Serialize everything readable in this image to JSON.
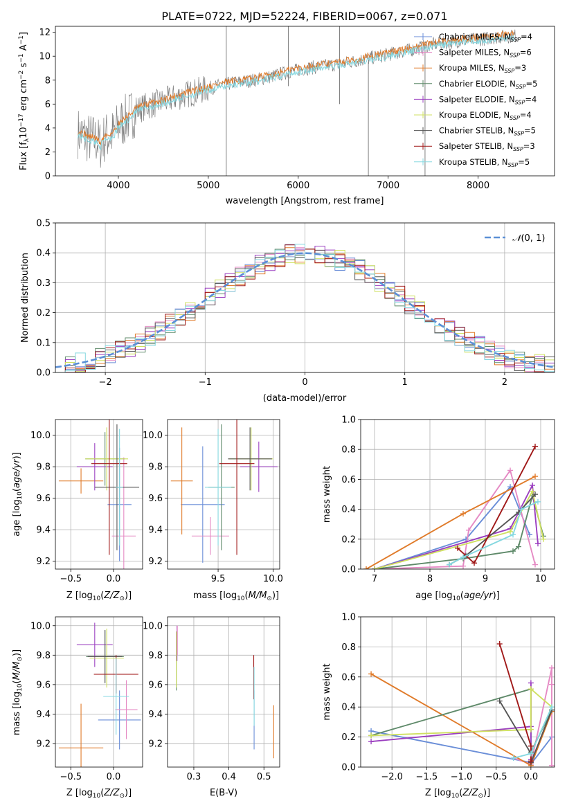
{
  "figure": {
    "title": "PLATE=0722, MJD=52224, FIBERID=0067, z=0.071"
  },
  "colors": {
    "Chabrier MILES": "#6a8ed8",
    "Salpeter MILES": "#e58ac4",
    "Kroupa MILES": "#e07b2a",
    "Chabrier ELODIE": "#5f8a6a",
    "Salpeter ELODIE": "#9b3fc0",
    "Kroupa ELODIE": "#cfe060",
    "Chabrier STELIB": "#555555",
    "Salpeter STELIB": "#a01818",
    "Kroupa STELIB": "#85d8e0",
    "data": "#808080",
    "normal": "#5b8fd6"
  },
  "chart_data": [
    {
      "id": "spectrum",
      "type": "line",
      "xlabel": "wavelength [Angstrom, rest frame]",
      "ylabel": "Flux [f_λ10^-17 erg cm^-2 s^-1 A^-1]",
      "xlim": [
        3300,
        8850
      ],
      "ylim": [
        0,
        12.5
      ],
      "xticks": [
        4000,
        5000,
        6000,
        7000,
        8000
      ],
      "yticks": [
        0,
        2,
        4,
        6,
        8,
        10,
        12
      ],
      "grid": false,
      "legend": "top-right",
      "legend_entries": [
        {
          "name": "Chabrier MILES",
          "nssp": "4"
        },
        {
          "name": "Salpeter MILES",
          "nssp": "6"
        },
        {
          "name": "Kroupa MILES",
          "nssp": "3"
        },
        {
          "name": "Chabrier ELODIE",
          "nssp": "5"
        },
        {
          "name": "Salpeter ELODIE",
          "nssp": "4"
        },
        {
          "name": "Kroupa ELODIE",
          "nssp": "4"
        },
        {
          "name": "Chabrier STELIB",
          "nssp": "5"
        },
        {
          "name": "Salpeter STELIB",
          "nssp": "3"
        },
        {
          "name": "Kroupa STELIB",
          "nssp": "5"
        }
      ],
      "continuum": {
        "x": [
          3550,
          3650,
          3750,
          3800,
          3850,
          3950,
          4000,
          4100,
          4200,
          4300,
          4500,
          4700,
          4900,
          5100,
          5300,
          5500,
          5700,
          5900,
          6100,
          6300,
          6500,
          6700,
          6900,
          7100,
          7300,
          7450,
          7600,
          7800,
          8000,
          8200,
          8400
        ],
        "y": [
          3.6,
          3.2,
          3.0,
          2.6,
          3.2,
          3.5,
          4.2,
          4.8,
          5.5,
          5.8,
          6.2,
          6.7,
          7.1,
          7.5,
          7.8,
          8.0,
          8.3,
          8.7,
          9.0,
          9.2,
          9.4,
          9.7,
          10.0,
          10.3,
          10.6,
          10.9,
          11.1,
          11.3,
          11.4,
          11.6,
          11.7
        ]
      },
      "data_spikes": [
        {
          "x": 5200,
          "y_low": 0,
          "y_high": 12.5
        },
        {
          "x": 5890,
          "y_low": 7.5,
          "y_high": 12.5
        },
        {
          "x": 6460,
          "y_low": 6.0,
          "y_high": 12.5
        },
        {
          "x": 6780,
          "y_low": 0,
          "y_high": 9.5
        },
        {
          "x": 7410,
          "y_low": 0,
          "y_high": 11.0
        }
      ]
    },
    {
      "id": "residuals",
      "type": "histogram",
      "xlabel": "(data-model)/error",
      "ylabel": "Normed distribution",
      "xlim": [
        -2.5,
        2.5
      ],
      "ylim": [
        0,
        0.5
      ],
      "xticks": [
        -2,
        -1,
        0,
        1,
        2
      ],
      "yticks": [
        0.0,
        0.1,
        0.2,
        0.3,
        0.4,
        0.5
      ],
      "grid": true,
      "legend": "top-right",
      "normal_label": "N(0,1)",
      "bin_width": 0.1,
      "bin_start": -2.5
    },
    {
      "id": "age-vs-Z",
      "type": "scatter",
      "xlabel": "Z [log10(Z/Z⊙)]",
      "ylabel": "age  [log10(age/yr)]",
      "xlim": [
        -0.68,
        0.34
      ],
      "ylim": [
        9.15,
        10.1
      ],
      "xticks": [
        -0.5,
        0.0
      ],
      "yticks": [
        9.2,
        9.4,
        9.6,
        9.8,
        10.0
      ],
      "grid": true,
      "points": [
        {
          "model": "Chabrier MILES",
          "x": 0.07,
          "xerr": 0.14,
          "y": 9.56,
          "yerr": 0.36
        },
        {
          "model": "Salpeter MILES",
          "x": 0.12,
          "xerr": 0.14,
          "y": 9.36,
          "yerr": 0.5
        },
        {
          "model": "Kroupa MILES",
          "x": -0.38,
          "xerr": 0.26,
          "y": 9.71,
          "yerr": 0.08
        },
        {
          "model": "Chabrier ELODIE",
          "x": -0.1,
          "xerr": 0.23,
          "y": 9.85,
          "yerr": 0.17
        },
        {
          "model": "Salpeter ELODIE",
          "x": -0.22,
          "xerr": 0.21,
          "y": 9.8,
          "yerr": 0.15
        },
        {
          "model": "Kroupa ELODIE",
          "x": -0.08,
          "xerr": 0.25,
          "y": 9.85,
          "yerr": 0.2
        },
        {
          "model": "Chabrier STELIB",
          "x": 0.04,
          "xerr": 0.26,
          "y": 9.67,
          "yerr": 0.4
        },
        {
          "model": "Salpeter STELIB",
          "x": -0.05,
          "xerr": 0.21,
          "y": 9.82,
          "yerr": 0.58
        },
        {
          "model": "Kroupa STELIB",
          "x": 0.07,
          "xerr": 0.04,
          "y": 9.67,
          "yerr": 0.37
        }
      ]
    },
    {
      "id": "age-vs-mass",
      "type": "scatter",
      "xlabel": "mass [log10(M/M⊙)]",
      "ylabel": "",
      "xlim": [
        9.04,
        10.06
      ],
      "ylim": [
        9.15,
        10.1
      ],
      "xticks": [
        9.5,
        10.0
      ],
      "yticks": [
        9.2,
        9.4,
        9.6,
        9.8,
        10.0
      ],
      "xticklabels": [
        "9.5",
        "10.0"
      ],
      "grid": true,
      "points": [
        {
          "model": "Chabrier MILES",
          "x": 9.36,
          "xerr": 0.2,
          "y": 9.56,
          "yerr": 0.37
        },
        {
          "model": "Salpeter MILES",
          "x": 9.43,
          "xerr": 0.17,
          "y": 9.36,
          "yerr": 0.12
        },
        {
          "model": "Kroupa MILES",
          "x": 9.17,
          "xerr": 0.1,
          "y": 9.71,
          "yerr": 0.34
        },
        {
          "model": "Chabrier ELODIE",
          "x": 9.53,
          "xerr": 0.12,
          "y": 9.67,
          "yerr": 0.4
        },
        {
          "model": "Salpeter ELODIE",
          "x": 9.87,
          "xerr": 0.17,
          "y": 9.8,
          "yerr": 0.16
        },
        {
          "model": "Kroupa ELODIE",
          "x": 9.8,
          "xerr": 0.2,
          "y": 9.85,
          "yerr": 0.2
        },
        {
          "model": "Chabrier STELIB",
          "x": 9.79,
          "xerr": 0.2,
          "y": 9.85,
          "yerr": 0.2
        },
        {
          "model": "Salpeter STELIB",
          "x": 9.67,
          "xerr": 0.16,
          "y": 9.82,
          "yerr": 0.58
        },
        {
          "model": "Kroupa STELIB",
          "x": 9.5,
          "xerr": 0.12,
          "y": 9.67,
          "yerr": 0.37
        }
      ]
    },
    {
      "id": "mass-weight-vs-age",
      "type": "line",
      "xlabel": "age  [log10(age/yr)]",
      "ylabel": "mass weight",
      "xlim": [
        6.75,
        10.25
      ],
      "ylim": [
        0,
        1
      ],
      "xticks": [
        7,
        8,
        9,
        10
      ],
      "yticks": [
        0.0,
        0.2,
        0.4,
        0.6,
        0.8,
        1.0
      ],
      "grid": true,
      "series": [
        {
          "model": "Chabrier MILES",
          "x": [
            7.0,
            8.65,
            9.45,
            9.8
          ],
          "y": [
            0.0,
            0.2,
            0.55,
            0.23
          ]
        },
        {
          "model": "Salpeter MILES",
          "x": [
            7.0,
            8.6,
            8.7,
            9.45,
            9.9
          ],
          "y": [
            0.0,
            0.02,
            0.26,
            0.66,
            0.03
          ]
        },
        {
          "model": "Kroupa MILES",
          "x": [
            6.85,
            8.6,
            9.9
          ],
          "y": [
            0.0,
            0.37,
            0.62
          ]
        },
        {
          "model": "Chabrier ELODIE",
          "x": [
            7.0,
            8.6,
            9.5,
            9.6,
            9.85,
            10.05
          ],
          "y": [
            0.0,
            0.07,
            0.12,
            0.15,
            0.49,
            0.22
          ]
        },
        {
          "model": "Salpeter ELODIE",
          "x": [
            7.0,
            9.45,
            9.85,
            9.95
          ],
          "y": [
            0.0,
            0.27,
            0.56,
            0.17
          ]
        },
        {
          "model": "Kroupa ELODIE",
          "x": [
            7.0,
            9.45,
            9.85,
            10.05
          ],
          "y": [
            0.0,
            0.25,
            0.52,
            0.2
          ]
        },
        {
          "model": "Chabrier STELIB",
          "x": [
            8.35,
            8.65,
            9.6,
            9.9
          ],
          "y": [
            0.03,
            0.09,
            0.38,
            0.5
          ]
        },
        {
          "model": "Salpeter STELIB",
          "x": [
            8.5,
            8.8,
            9.9
          ],
          "y": [
            0.14,
            0.04,
            0.82
          ]
        },
        {
          "model": "Kroupa STELIB",
          "x": [
            8.35,
            8.6,
            9.5,
            9.65,
            9.95
          ],
          "y": [
            0.03,
            0.08,
            0.23,
            0.4,
            0.45
          ]
        }
      ]
    },
    {
      "id": "mass-vs-Z",
      "type": "scatter",
      "xlabel": "Z [log10(Z/Z⊙)]",
      "ylabel": "mass [log10(M/M⊙)]",
      "xlim": [
        -0.68,
        0.34
      ],
      "ylim": [
        9.04,
        10.06
      ],
      "xticks": [
        -0.5,
        0.0
      ],
      "yticks": [
        9.2,
        9.4,
        9.6,
        9.8,
        10.0
      ],
      "grid": true,
      "points": [
        {
          "model": "Chabrier MILES",
          "x": 0.07,
          "xerr": 0.25,
          "y": 9.36,
          "yerr": 0.2
        },
        {
          "model": "Salpeter MILES",
          "x": 0.15,
          "xerr": 0.13,
          "y": 9.43,
          "yerr": 0.2
        },
        {
          "model": "Kroupa MILES",
          "x": -0.38,
          "xerr": 0.26,
          "y": 9.17,
          "yerr": 0.3
        },
        {
          "model": "Chabrier ELODIE",
          "x": -0.1,
          "xerr": 0.22,
          "y": 9.79,
          "yerr": 0.18
        },
        {
          "model": "Salpeter ELODIE",
          "x": -0.22,
          "xerr": 0.21,
          "y": 9.87,
          "yerr": 0.15
        },
        {
          "model": "Kroupa ELODIE",
          "x": -0.08,
          "xerr": 0.2,
          "y": 9.78,
          "yerr": 0.2
        },
        {
          "model": "Chabrier STELIB",
          "x": -0.1,
          "xerr": 0.2,
          "y": 9.79,
          "yerr": 0.18
        },
        {
          "model": "Salpeter STELIB",
          "x": 0.03,
          "xerr": 0.26,
          "y": 9.67,
          "yerr": 0.13
        },
        {
          "model": "Kroupa STELIB",
          "x": 0.03,
          "xerr": 0.15,
          "y": 9.52,
          "yerr": 0.26
        }
      ]
    },
    {
      "id": "ebv",
      "type": "scatter",
      "xlabel": "E(B-V)",
      "ylabel": "",
      "xlim": [
        0.225,
        0.545
      ],
      "ylim": [
        9.04,
        10.06
      ],
      "xticks": [
        0.3,
        0.4,
        0.5
      ],
      "yticks": [
        9.2,
        9.4,
        9.6,
        9.8,
        10.0
      ],
      "grid": true,
      "points": [
        {
          "model": "Chabrier ELODIE",
          "x": 0.25,
          "y": 9.76,
          "yerr": 0.2
        },
        {
          "model": "Salpeter ELODIE",
          "x": 0.252,
          "y": 9.88,
          "yerr": 0.12
        },
        {
          "model": "Kroupa ELODIE",
          "x": 0.25,
          "y": 9.77,
          "yerr": 0.19
        },
        {
          "model": "Salpeter MILES",
          "x": 0.253,
          "y": 9.9,
          "yerr": 0.1
        },
        {
          "model": "Salpeter STELIB",
          "x": 0.471,
          "y": 9.65,
          "yerr": 0.15
        },
        {
          "model": "Chabrier MILES",
          "x": 0.472,
          "y": 9.36,
          "yerr": 0.2
        },
        {
          "model": "Kroupa STELIB",
          "x": 0.472,
          "y": 9.52,
          "yerr": 0.2
        },
        {
          "model": "Kroupa MILES",
          "x": 0.528,
          "y": 9.28,
          "yerr": 0.18
        }
      ]
    },
    {
      "id": "mass-weight-vs-Z",
      "type": "line",
      "xlabel": "Z [log10(Z/Z⊙)]",
      "ylabel": "mass weight",
      "xlim": [
        -2.45,
        0.34
      ],
      "ylim": [
        0,
        1
      ],
      "xticks": [
        -2.0,
        -1.5,
        -1.0,
        -0.5,
        0.0
      ],
      "yticks": [
        0.0,
        0.2,
        0.4,
        0.6,
        0.8,
        1.0
      ],
      "grid": true,
      "series": [
        {
          "model": "Chabrier MILES",
          "x": [
            -2.3,
            0.0,
            0.0,
            0.3
          ],
          "y": [
            0.24,
            0.03,
            0.02,
            0.2
          ]
        },
        {
          "model": "Salpeter MILES",
          "x": [
            -0.25,
            0.0,
            0.3,
            0.3,
            0.3
          ],
          "y": [
            0.06,
            0.02,
            0.66,
            0.55,
            0.01
          ]
        },
        {
          "model": "Kroupa MILES",
          "x": [
            -2.3,
            0.0,
            0.3
          ],
          "y": [
            0.62,
            0.01,
            0.37
          ]
        },
        {
          "model": "Chabrier ELODIE",
          "x": [
            -2.3,
            0.0,
            0.0,
            0.3
          ],
          "y": [
            0.21,
            0.52,
            0.1,
            0.38
          ]
        },
        {
          "model": "Salpeter ELODIE",
          "x": [
            -2.3,
            0.0,
            0.0,
            0.0
          ],
          "y": [
            0.17,
            0.27,
            0.56,
            0.05
          ]
        },
        {
          "model": "Kroupa ELODIE",
          "x": [
            -2.3,
            0.0,
            0.0,
            0.3
          ],
          "y": [
            0.21,
            0.25,
            0.52,
            0.4
          ]
        },
        {
          "model": "Chabrier STELIB",
          "x": [
            -0.45,
            0.0,
            0.0,
            0.3
          ],
          "y": [
            0.44,
            0.09,
            0.03,
            0.38
          ]
        },
        {
          "model": "Salpeter STELIB",
          "x": [
            -0.45,
            0.0,
            0.0
          ],
          "y": [
            0.82,
            0.14,
            0.04
          ]
        },
        {
          "model": "Kroupa STELIB",
          "x": [
            -0.25,
            0.0,
            0.3
          ],
          "y": [
            0.06,
            0.09,
            0.4
          ]
        }
      ]
    }
  ]
}
